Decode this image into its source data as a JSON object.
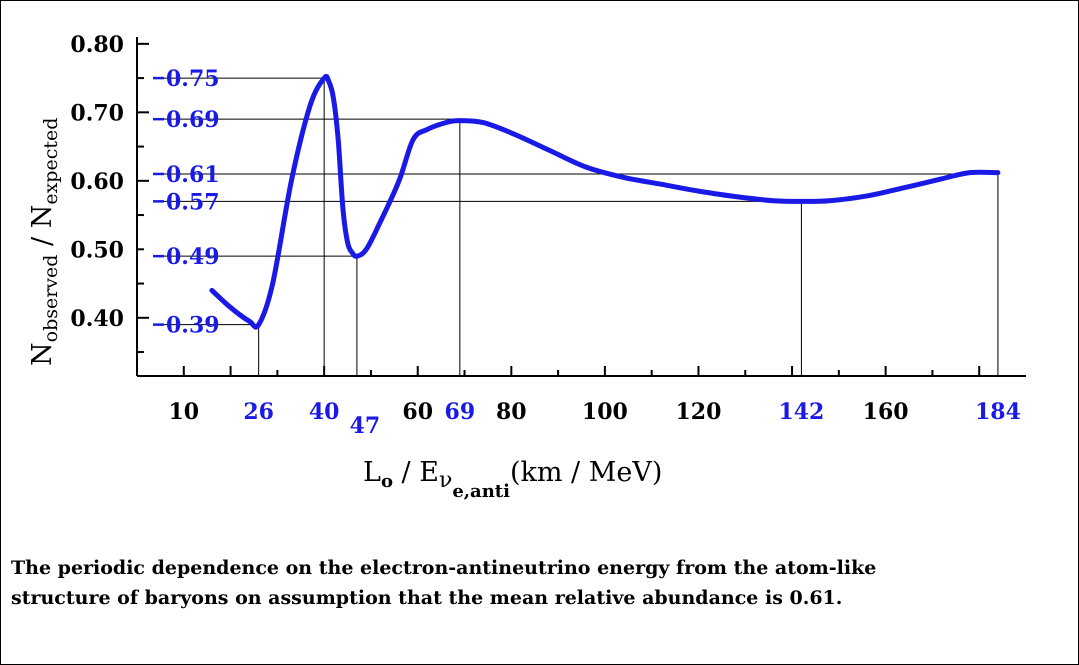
{
  "chart_data": {
    "type": "line",
    "ylabel_main": "N",
    "ylabel_sub1": "observed",
    "ylabel_sep": " / N",
    "ylabel_sub2": "expected",
    "xlabel_L": "L",
    "xlabel_o": "o",
    "xlabel_sep": " / E",
    "xlabel_nu": "ν",
    "xlabel_sub": "e,anti",
    "xlabel_unit": "(km / MeV)",
    "xlim": [
      0,
      190
    ],
    "ylim": [
      0.315,
      0.81
    ],
    "x_ticks": [
      "10",
      "60",
      "80",
      "100",
      "120",
      "160"
    ],
    "x_tick_values": [
      10,
      60,
      80,
      100,
      120,
      160
    ],
    "x_highlight_ticks": [
      "26",
      "40",
      "47",
      "69",
      "142",
      "184"
    ],
    "x_highlight_values": [
      26,
      40,
      47,
      69,
      142,
      184
    ],
    "y_ticks": [
      "0.40",
      "0.50",
      "0.60",
      "0.70",
      "0.80"
    ],
    "y_tick_values": [
      0.4,
      0.5,
      0.6,
      0.7,
      0.8
    ],
    "y_highlight_ticks": [
      "0.39",
      "0.49",
      "0.57",
      "0.61",
      "0.69",
      "0.75"
    ],
    "y_highlight_values": [
      0.39,
      0.49,
      0.57,
      0.61,
      0.69,
      0.75
    ],
    "series": [
      {
        "x": [
          16,
          20,
          24,
          26,
          29,
          33,
          37,
          40,
          41,
          42,
          43,
          44,
          45,
          46,
          47,
          49,
          52,
          56,
          59,
          62,
          66,
          69,
          74,
          80,
          88,
          96,
          104,
          112,
          120,
          128,
          136,
          142,
          148,
          156,
          164,
          172,
          178,
          184
        ],
        "y": [
          0.44,
          0.415,
          0.395,
          0.39,
          0.45,
          0.6,
          0.71,
          0.75,
          0.745,
          0.72,
          0.66,
          0.56,
          0.51,
          0.495,
          0.49,
          0.5,
          0.54,
          0.6,
          0.66,
          0.675,
          0.685,
          0.688,
          0.685,
          0.67,
          0.645,
          0.62,
          0.605,
          0.595,
          0.585,
          0.577,
          0.571,
          0.57,
          0.571,
          0.578,
          0.59,
          0.603,
          0.612,
          0.612
        ]
      }
    ],
    "markers": [
      {
        "x": 26,
        "y": 0.39
      },
      {
        "x": 40,
        "y": 0.75
      },
      {
        "x": 47,
        "y": 0.49
      },
      {
        "x": 69,
        "y": 0.69
      },
      {
        "x": 142,
        "y": 0.57
      },
      {
        "x": 184,
        "y": 0.61
      }
    ],
    "line_color": "#1a1ae6",
    "highlight_color": "#1a1ae6"
  },
  "caption": {
    "line1": "The periodic dependence on the electron-antineutrino energy from the atom-like",
    "line2": "structure of baryons on assumption that the mean relative abundance is 0.61."
  }
}
